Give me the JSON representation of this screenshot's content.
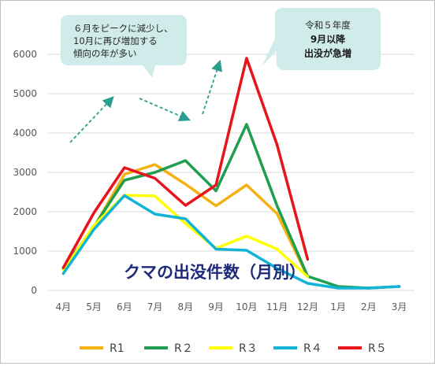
{
  "chart_data": {
    "type": "line",
    "title": "",
    "xlabel": "",
    "ylabel": "",
    "ylim": [
      0,
      6000
    ],
    "yticks": [
      0,
      1000,
      2000,
      3000,
      4000,
      5000,
      6000
    ],
    "grid": true,
    "legend": "bottom",
    "categories": [
      "4月",
      "5月",
      "6月",
      "7月",
      "8月",
      "9月",
      "10月",
      "11月",
      "12月",
      "1月",
      "2月",
      "3月"
    ],
    "series": [
      {
        "name": "R1",
        "color": "#f5b10f",
        "values": [
          520,
          1600,
          2950,
          3200,
          2700,
          2150,
          2680,
          1950,
          350,
          null,
          null,
          null
        ]
      },
      {
        "name": "R２",
        "color": "#1e9e4e",
        "values": [
          560,
          1620,
          2800,
          3000,
          3300,
          2530,
          4220,
          2150,
          360,
          100,
          60,
          100
        ]
      },
      {
        "name": "R３",
        "color": "#ffff00",
        "values": [
          500,
          1650,
          2420,
          2400,
          1700,
          1070,
          1380,
          1050,
          350,
          null,
          null,
          null
        ]
      },
      {
        "name": "R４",
        "color": "#11b3d6",
        "values": [
          430,
          1550,
          2410,
          1940,
          1820,
          1050,
          1020,
          560,
          180,
          60,
          60,
          100
        ]
      },
      {
        "name": "R５",
        "color": "#e8141b",
        "values": [
          580,
          1970,
          3120,
          2850,
          2160,
          2680,
          5900,
          3700,
          790,
          null,
          null,
          null
        ]
      }
    ],
    "annotations": {
      "overlay_title": "クマの出没件数（月別）",
      "bubble_left": [
        "６月をピークに減少し、",
        "10月に再び増加する",
        "傾向の年が多い"
      ],
      "bubble_right": [
        "令和５年度",
        "9月以降",
        "出没が急増"
      ]
    }
  }
}
